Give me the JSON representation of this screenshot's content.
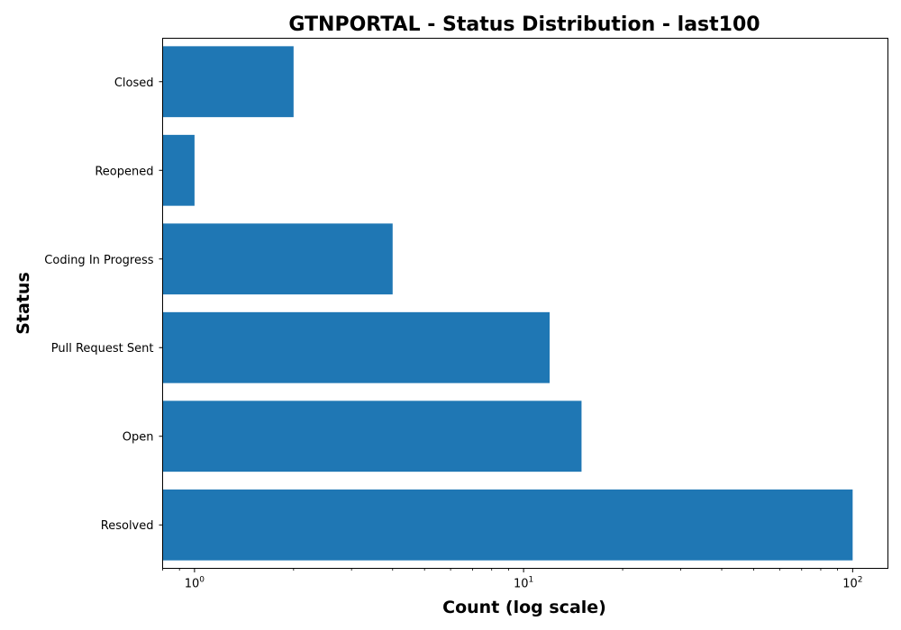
{
  "chart_data": {
    "type": "bar",
    "orientation": "horizontal",
    "title": "GTNPORTAL - Status Distribution - last100",
    "xlabel": "Count (log scale)",
    "ylabel": "Status",
    "x_scale": "log",
    "xlim": [
      0.8,
      128
    ],
    "x_ticks": [
      {
        "value": 1,
        "base": "10",
        "exp": "0"
      },
      {
        "value": 10,
        "base": "10",
        "exp": "1"
      },
      {
        "value": 100,
        "base": "10",
        "exp": "2"
      }
    ],
    "categories": [
      "Resolved",
      "Open",
      "Pull Request Sent",
      "Coding In Progress",
      "Reopened",
      "Closed"
    ],
    "values": [
      100,
      15,
      12,
      4,
      1,
      2
    ],
    "bar_color": "#1f77b4",
    "grid": false,
    "legend": "none"
  }
}
